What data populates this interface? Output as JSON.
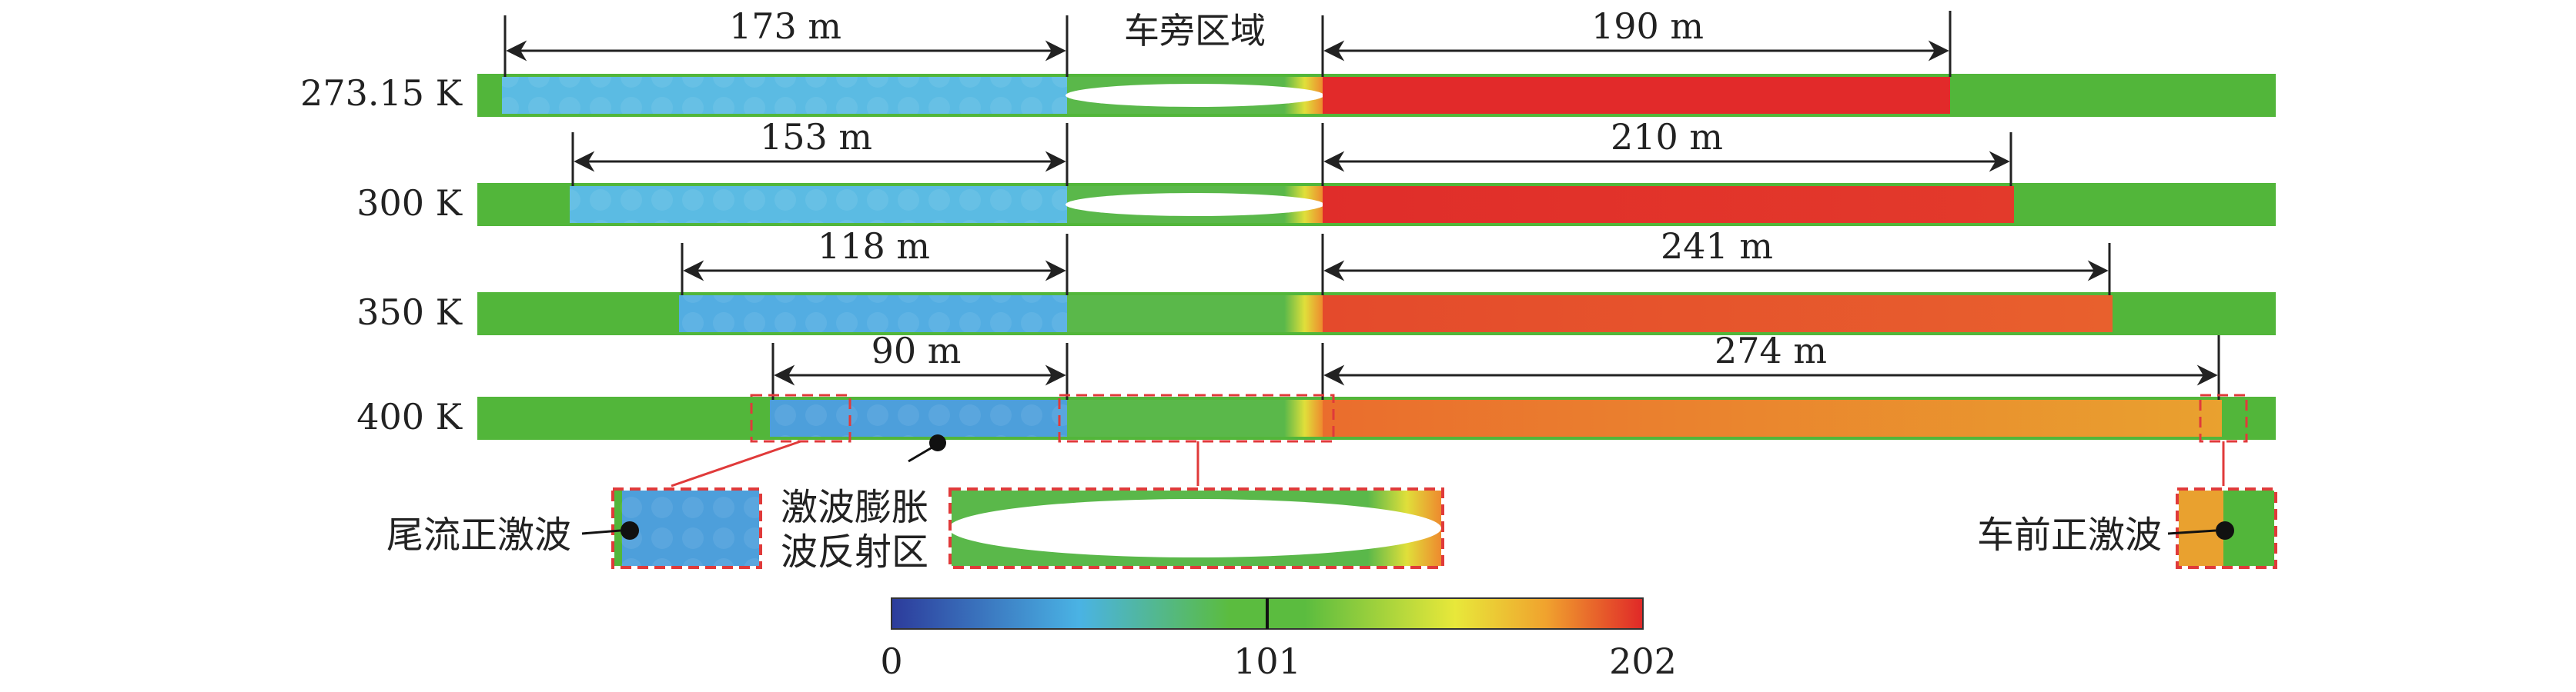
{
  "scale": {
    "min_label": "0",
    "mid_label": "101",
    "max_label": "202"
  },
  "colors": {
    "green": "#52b63a",
    "blue": "#58b8e0",
    "blue_dark": "#3f8fd6",
    "red": "#e22a2a",
    "orange": "#ec8a2c",
    "orange_light": "#e9a12f",
    "dashed_box": "#e03a3a"
  },
  "rows": [
    {
      "label": "273.15 K",
      "rear_distance": "173 m",
      "front_distance": "190 m",
      "rear_color": "#5bbbe3",
      "front_color": "#e22a2a",
      "front_end_color": "#e22a2a"
    },
    {
      "label": "300 K",
      "rear_distance": "153 m",
      "front_distance": "210 m",
      "rear_color": "#5bbbe3",
      "front_color": "#e02d2a",
      "front_end_color": "#e33a2b"
    },
    {
      "label": "350 K",
      "rear_distance": "118 m",
      "front_distance": "241 m",
      "rear_color": "#53ade2",
      "front_color": "#e44a2c",
      "front_end_color": "#e8602d"
    },
    {
      "label": "400 K",
      "rear_distance": "90 m",
      "front_distance": "274 m",
      "rear_color": "#4d9fdb",
      "front_color": "#ea6d2d",
      "front_end_color": "#e9a12f"
    }
  ],
  "annotations": {
    "side_region": "车旁区域",
    "wake_shock": "尾流正激波",
    "reflection_line1": "激波膨胀",
    "reflection_line2": "波反射区",
    "front_shock": "车前正激波"
  }
}
